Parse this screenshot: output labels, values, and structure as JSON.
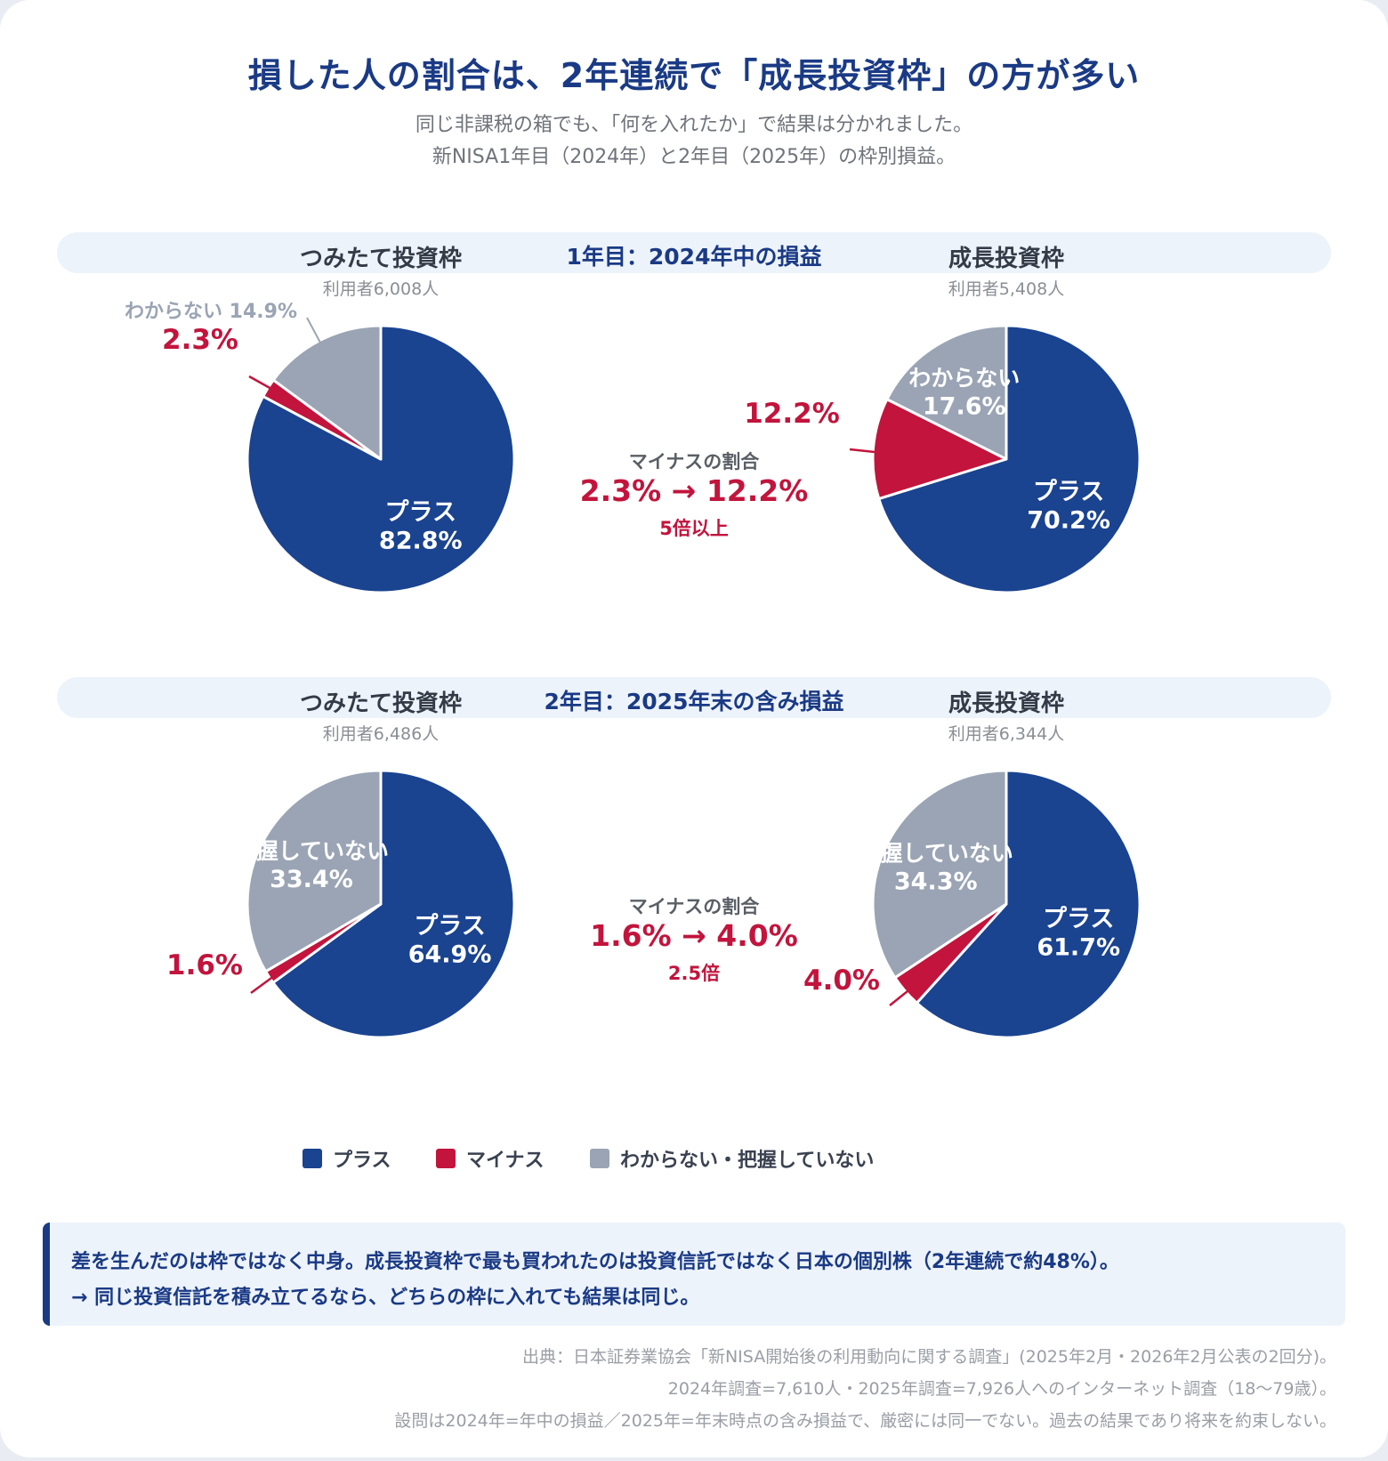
{
  "title": "損した人の割合は、2年連続で「成長投資枠」の方が多い",
  "subtitle_lines": [
    "同じ非課税の箱でも、「何を入れたか」で結果は分かれました。",
    "新NISA1年目（2024年）と2年目（2025年）の枠別損益。"
  ],
  "colors": {
    "plus": "#1a4390",
    "minus": "#c2143c",
    "unknown": "#9aa4b4",
    "accent": "#1a3a85"
  },
  "sections": [
    {
      "band_label": "1年目：2024年中の損益",
      "middle": {
        "label": "マイナスの割合",
        "change": "2.3% → 12.2%",
        "ratio": "5倍以上"
      }
    },
    {
      "band_label": "2年目：2025年末の含み損益",
      "middle": {
        "label": "マイナスの割合",
        "change": "1.6% → 4.0%",
        "ratio": "2.5倍"
      }
    }
  ],
  "chart_data": [
    {
      "type": "pie",
      "title": "つみたて投資枠",
      "subtitle": "利用者6,008人",
      "slices": [
        {
          "category": "プラス",
          "label": "プラス",
          "value": 82.8,
          "value_label": "82.8%"
        },
        {
          "category": "マイナス",
          "label": "",
          "value": 2.3,
          "value_label": "2.3%"
        },
        {
          "category": "わからない・把握していない",
          "label": "わからない",
          "value": 14.9,
          "value_label": "14.9%"
        }
      ]
    },
    {
      "type": "pie",
      "title": "成長投資枠",
      "subtitle": "利用者5,408人",
      "slices": [
        {
          "category": "プラス",
          "label": "プラス",
          "value": 70.2,
          "value_label": "70.2%"
        },
        {
          "category": "マイナス",
          "label": "",
          "value": 12.2,
          "value_label": "12.2%"
        },
        {
          "category": "わからない・把握していない",
          "label": "わからない",
          "value": 17.6,
          "value_label": "17.6%"
        }
      ]
    },
    {
      "type": "pie",
      "title": "つみたて投資枠",
      "subtitle": "利用者6,486人",
      "slices": [
        {
          "category": "プラス",
          "label": "プラス",
          "value": 64.9,
          "value_label": "64.9%"
        },
        {
          "category": "マイナス",
          "label": "",
          "value": 1.6,
          "value_label": "1.6%"
        },
        {
          "category": "わからない・把握していない",
          "label": "把握していない",
          "value": 33.4,
          "value_label": "33.4%"
        }
      ]
    },
    {
      "type": "pie",
      "title": "成長投資枠",
      "subtitle": "利用者6,344人",
      "slices": [
        {
          "category": "プラス",
          "label": "プラス",
          "value": 61.7,
          "value_label": "61.7%"
        },
        {
          "category": "マイナス",
          "label": "",
          "value": 4.0,
          "value_label": "4.0%"
        },
        {
          "category": "わからない・把握していない",
          "label": "把握していない",
          "value": 34.3,
          "value_label": "34.3%"
        }
      ]
    }
  ],
  "legend": [
    {
      "label": "プラス",
      "color": "#1a4390"
    },
    {
      "label": "マイナス",
      "color": "#c2143c"
    },
    {
      "label": "わからない・把握していない",
      "color": "#9aa4b4"
    }
  ],
  "note_lines": [
    "差を生んだのは枠ではなく中身。成長投資枠で最も買われたのは投資信託ではなく日本の個別株（2年連続で約48%）。",
    "→ 同じ投資信託を積み立てるなら、どちらの枠に入れても結果は同じ。"
  ],
  "source_lines": [
    "出典：日本証券業協会「新NISA開始後の利用動向に関する調査」(2025年2月・2026年2月公表の2回分)。",
    "2024年調査=7,610人・2025年調査=7,926人へのインターネット調査（18〜79歳）。",
    "設問は2024年=年中の損益／2025年=年末時点の含み損益で、厳密には同一でない。過去の結果であり将来を約束しない。"
  ]
}
